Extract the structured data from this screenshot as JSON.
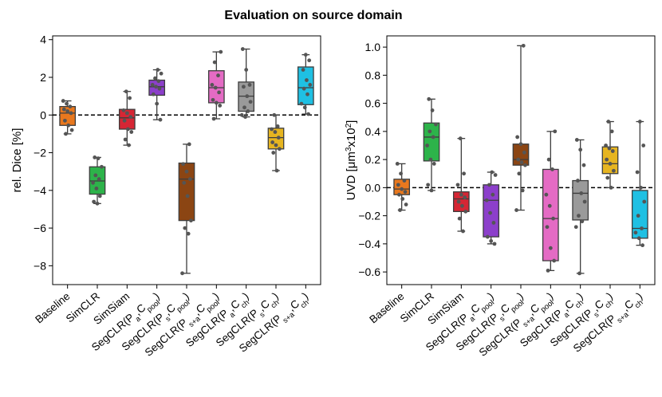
{
  "title": "Evaluation on source domain",
  "chart_data": [
    {
      "type": "box",
      "ylabel": "rel. Dice [%]",
      "ylim": [
        -9,
        4.2
      ],
      "yticks": [
        "4",
        "2",
        "0",
        "−2",
        "−4",
        "−6",
        "−8"
      ],
      "reference_line": 0,
      "categories": [
        "Baseline",
        "SimCLR",
        "SimSiam",
        "SegCLR(Pa,Cpool)",
        "SegCLR(Ps,Cpool)",
        "SegCLR(Ps+a,Cpool)",
        "SegCLR(Pa,Cch)",
        "SegCLR(Ps,Cch)",
        "SegCLR(Ps+a,Cch)"
      ],
      "colors": [
        "#e8781e",
        "#2db34a",
        "#d62634",
        "#8c3fcb",
        "#8b4513",
        "#e46bc4",
        "#9a9a9a",
        "#e6b521",
        "#1fc0e3"
      ],
      "boxes": [
        {
          "whislo": -1.0,
          "q1": -0.55,
          "med": 0.1,
          "q3": 0.45,
          "whishi": 0.75
        },
        {
          "whislo": -4.7,
          "q1": -4.2,
          "med": -3.5,
          "q3": -2.75,
          "whishi": -2.25
        },
        {
          "whislo": -1.6,
          "q1": -0.75,
          "med": -0.15,
          "q3": 0.3,
          "whishi": 1.25
        },
        {
          "whislo": -0.25,
          "q1": 1.05,
          "med": 1.5,
          "q3": 1.85,
          "whishi": 2.4
        },
        {
          "whislo": -8.4,
          "q1": -5.6,
          "med": -3.4,
          "q3": -2.55,
          "whishi": -1.55
        },
        {
          "whislo": -0.2,
          "q1": 0.65,
          "med": 1.45,
          "q3": 2.35,
          "whishi": 3.35
        },
        {
          "whislo": -0.1,
          "q1": 0.2,
          "med": 1.0,
          "q3": 1.75,
          "whishi": 3.5
        },
        {
          "whislo": -2.95,
          "q1": -1.8,
          "med": -1.2,
          "q3": -0.7,
          "whishi": 0.0
        },
        {
          "whislo": 0.05,
          "q1": 0.55,
          "med": 1.45,
          "q3": 2.55,
          "whishi": 3.2
        }
      ],
      "points": [
        [
          0.75,
          0.6,
          0.45,
          0.3,
          0.2,
          0.1,
          -0.3,
          -0.55,
          -0.8,
          -1.0
        ],
        [
          -2.25,
          -2.3,
          -2.75,
          -3.2,
          -3.4,
          -3.6,
          -3.9,
          -4.3,
          -4.6,
          -4.7
        ],
        [
          1.25,
          0.9,
          0.25,
          0.1,
          -0.1,
          -0.3,
          -0.75,
          -0.9,
          -1.3,
          -1.6
        ],
        [
          2.4,
          2.2,
          1.95,
          1.8,
          1.6,
          1.5,
          1.4,
          1.1,
          0.6,
          -0.25
        ],
        [
          -1.55,
          -2.6,
          -3.0,
          -3.4,
          -3.6,
          -4.3,
          -5.6,
          -6.0,
          -6.3,
          -8.4
        ],
        [
          3.35,
          2.8,
          2.1,
          1.6,
          1.45,
          1.2,
          0.8,
          0.65,
          0.5,
          -0.2
        ],
        [
          3.5,
          2.4,
          1.6,
          1.5,
          1.0,
          0.7,
          0.4,
          0.2,
          0.0,
          -0.1
        ],
        [
          0.0,
          -0.6,
          -0.75,
          -0.9,
          -1.2,
          -1.45,
          -1.6,
          -1.8,
          -2.0,
          -2.95
        ],
        [
          3.2,
          2.9,
          2.4,
          1.85,
          1.6,
          1.4,
          1.1,
          0.6,
          0.4,
          0.05
        ]
      ]
    },
    {
      "type": "box",
      "ylabel": "UVD [μm³x10²]",
      "ylim": [
        -0.69,
        1.08
      ],
      "yticks": [
        "1.0",
        "0.8",
        "0.6",
        "0.4",
        "0.2",
        "0.0",
        "−0.2",
        "−0.4",
        "−0.6"
      ],
      "reference_line": 0,
      "categories": [
        "Baseline",
        "SimCLR",
        "SimSiam",
        "SegCLR(Pa,Cpool)",
        "SegCLR(Ps,Cpool)",
        "SegCLR(Ps+a,Cpool)",
        "SegCLR(Pa,Cch)",
        "SegCLR(Ps,Cch)",
        "SegCLR(Ps+a,Cch)"
      ],
      "colors": [
        "#e8781e",
        "#2db34a",
        "#d62634",
        "#8c3fcb",
        "#8b4513",
        "#e46bc4",
        "#9a9a9a",
        "#e6b521",
        "#1fc0e3"
      ],
      "boxes": [
        {
          "whislo": -0.16,
          "q1": -0.05,
          "med": -0.01,
          "q3": 0.06,
          "whishi": 0.17
        },
        {
          "whislo": -0.02,
          "q1": 0.19,
          "med": 0.36,
          "q3": 0.46,
          "whishi": 0.63
        },
        {
          "whislo": -0.31,
          "q1": -0.17,
          "med": -0.08,
          "q3": -0.03,
          "whishi": 0.35
        },
        {
          "whislo": -0.4,
          "q1": -0.35,
          "med": -0.09,
          "q3": 0.02,
          "whishi": 0.11
        },
        {
          "whislo": -0.16,
          "q1": 0.16,
          "med": 0.2,
          "q3": 0.31,
          "whishi": 1.01
        },
        {
          "whislo": -0.59,
          "q1": -0.52,
          "med": -0.22,
          "q3": 0.13,
          "whishi": 0.4
        },
        {
          "whislo": -0.61,
          "q1": -0.23,
          "med": -0.04,
          "q3": 0.05,
          "whishi": 0.34
        },
        {
          "whislo": 0.0,
          "q1": 0.1,
          "med": 0.17,
          "q3": 0.29,
          "whishi": 0.47
        },
        {
          "whislo": -0.41,
          "q1": -0.36,
          "med": -0.29,
          "q3": -0.02,
          "whishi": 0.47
        }
      ],
      "points": [
        [
          0.17,
          0.1,
          0.05,
          0.02,
          -0.01,
          -0.03,
          -0.05,
          -0.08,
          -0.12,
          -0.16
        ],
        [
          0.63,
          0.55,
          0.45,
          0.4,
          0.36,
          0.3,
          0.2,
          0.17,
          0.02,
          -0.02
        ],
        [
          0.35,
          0.1,
          0.02,
          -0.05,
          -0.07,
          -0.1,
          -0.13,
          -0.17,
          -0.22,
          -0.31
        ],
        [
          0.11,
          0.09,
          0.02,
          -0.05,
          -0.09,
          -0.18,
          -0.25,
          -0.35,
          -0.38,
          -0.4
        ],
        [
          1.01,
          0.36,
          0.31,
          0.25,
          0.2,
          0.18,
          0.16,
          0.1,
          -0.02,
          -0.16
        ],
        [
          0.4,
          0.2,
          0.13,
          -0.05,
          -0.13,
          -0.22,
          -0.28,
          -0.43,
          -0.52,
          -0.59
        ],
        [
          0.34,
          0.27,
          0.16,
          0.05,
          -0.04,
          -0.1,
          -0.2,
          -0.24,
          -0.28,
          -0.61
        ],
        [
          0.47,
          0.4,
          0.3,
          0.28,
          0.26,
          0.2,
          0.17,
          0.12,
          0.07,
          0.0
        ],
        [
          0.47,
          0.3,
          0.11,
          0.0,
          -0.1,
          -0.2,
          -0.29,
          -0.32,
          -0.36,
          -0.41
        ]
      ]
    }
  ]
}
